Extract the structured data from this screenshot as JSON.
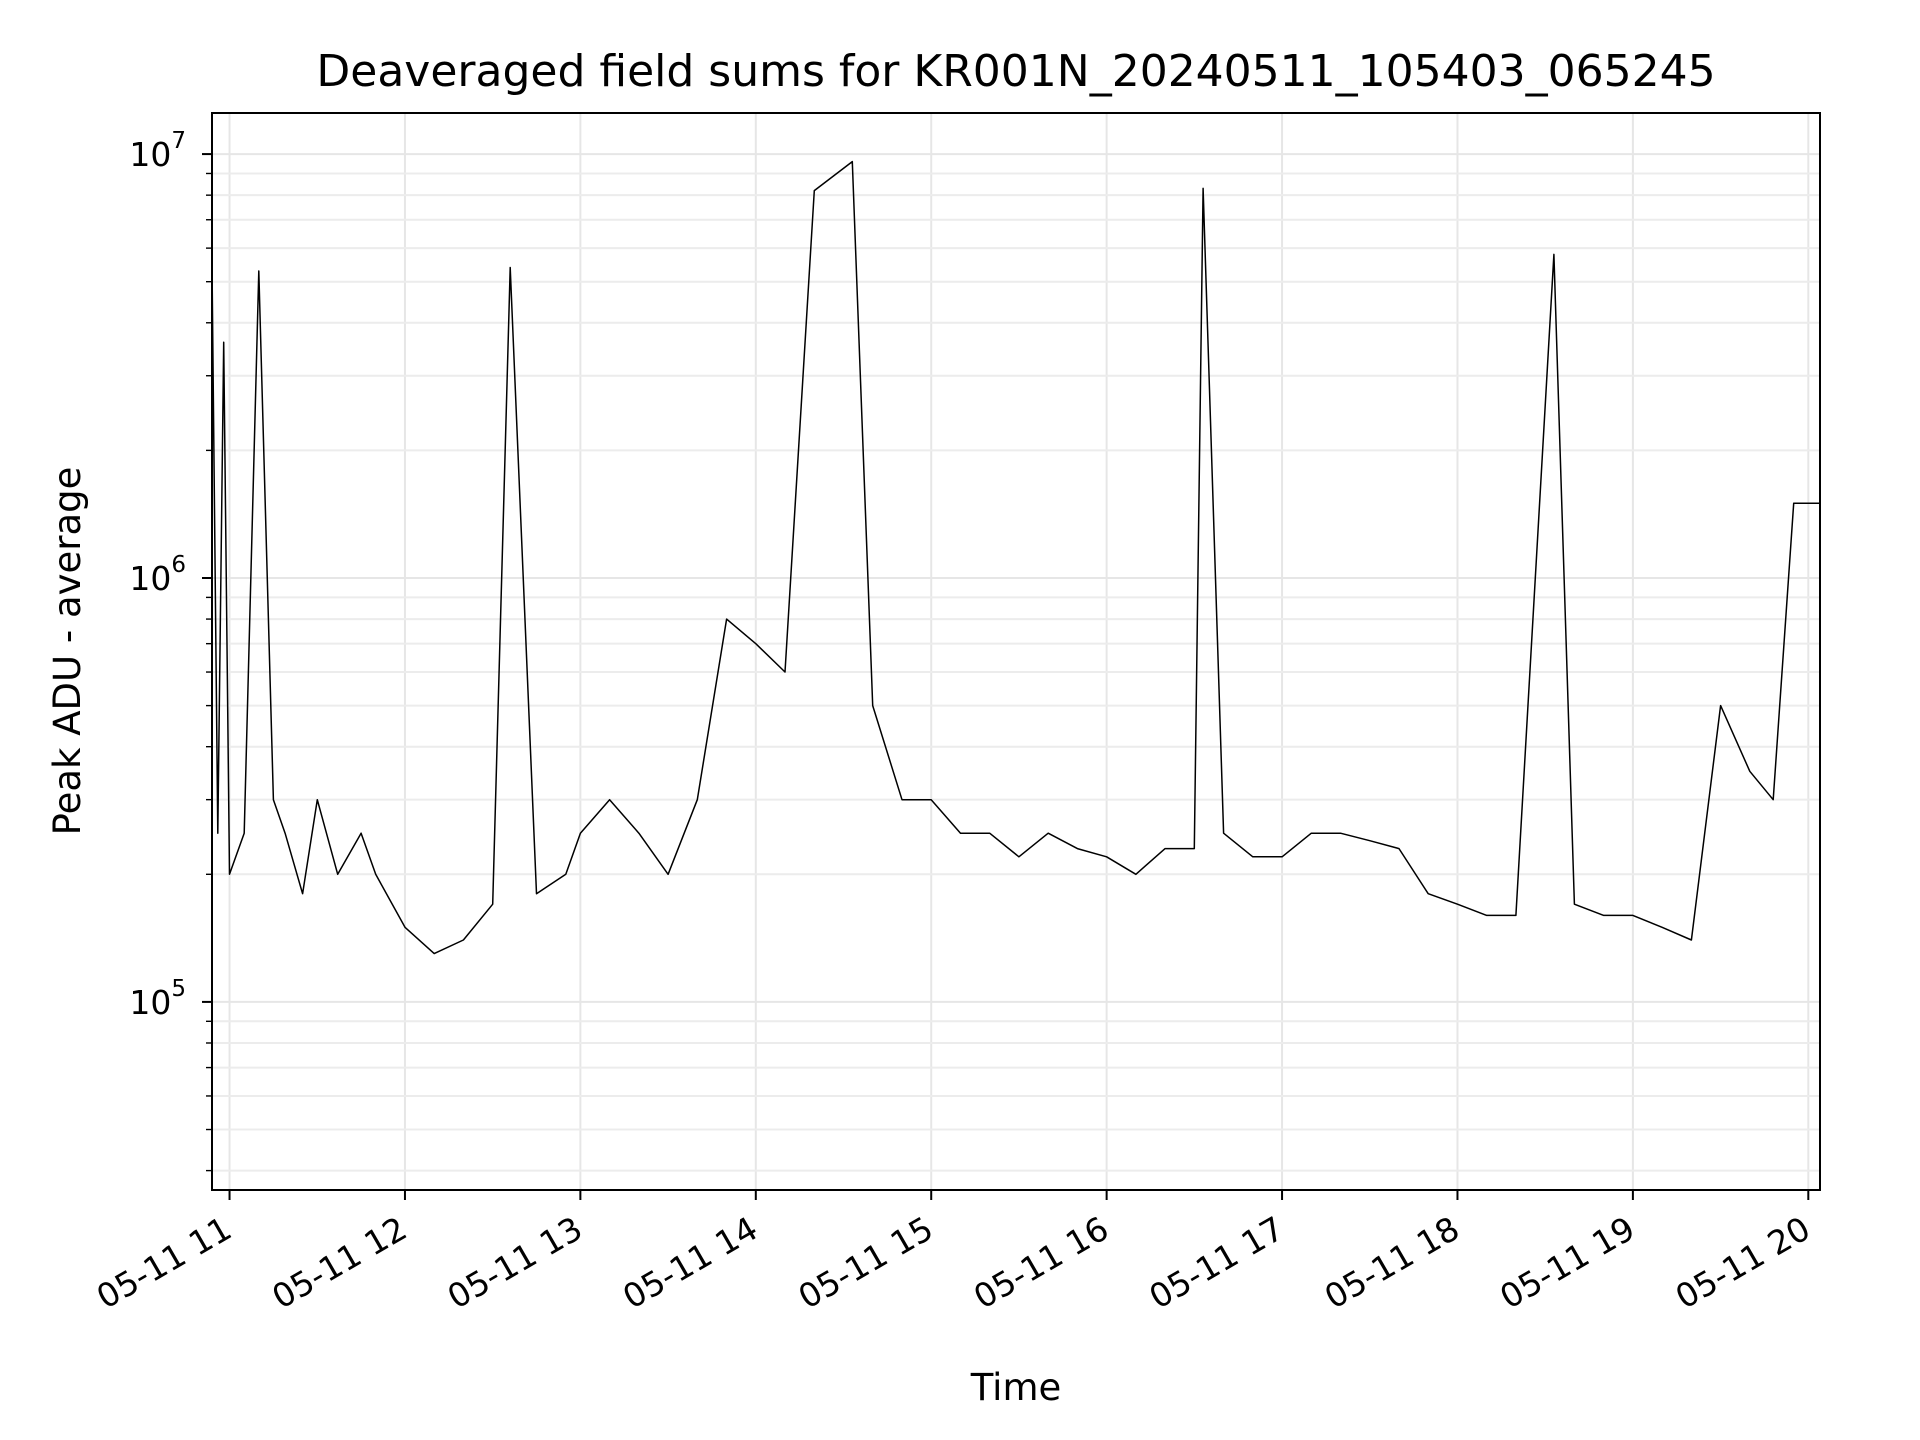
{
  "chart_data": {
    "type": "line",
    "title": "Deaveraged field sums for KR001N_20240511_105403_065245",
    "xlabel": "Time",
    "ylabel": "Peak ADU - average",
    "y_scale": "log",
    "ylim": [
      36000,
      12500000
    ],
    "xlim": [
      "2024-05-11T10:54",
      "2024-05-11T20:04"
    ],
    "grid": "major and minor",
    "x_tick_labels": [
      "05-11 11",
      "05-11 12",
      "05-11 13",
      "05-11 14",
      "05-11 15",
      "05-11 16",
      "05-11 17",
      "05-11 18",
      "05-11 19",
      "05-11 20"
    ],
    "y_tick_labels": [
      {
        "base": "10",
        "exp": "5",
        "value": 100000
      },
      {
        "base": "10",
        "exp": "6",
        "value": 1000000
      },
      {
        "base": "10",
        "exp": "7",
        "value": 10000000
      }
    ],
    "series": [
      {
        "color": "#000000",
        "x": [
          "2024-05-11T10:54",
          "2024-05-11T10:56",
          "2024-05-11T10:58",
          "2024-05-11T11:00",
          "2024-05-11T11:05",
          "2024-05-11T11:10",
          "2024-05-11T11:15",
          "2024-05-11T11:19",
          "2024-05-11T11:25",
          "2024-05-11T11:30",
          "2024-05-11T11:37",
          "2024-05-11T11:45",
          "2024-05-11T11:50",
          "2024-05-11T12:00",
          "2024-05-11T12:10",
          "2024-05-11T12:20",
          "2024-05-11T12:30",
          "2024-05-11T12:36",
          "2024-05-11T12:45",
          "2024-05-11T12:55",
          "2024-05-11T13:00",
          "2024-05-11T13:10",
          "2024-05-11T13:20",
          "2024-05-11T13:30",
          "2024-05-11T13:40",
          "2024-05-11T13:50",
          "2024-05-11T14:00",
          "2024-05-11T14:10",
          "2024-05-11T14:20",
          "2024-05-11T14:33",
          "2024-05-11T14:40",
          "2024-05-11T14:50",
          "2024-05-11T15:00",
          "2024-05-11T15:10",
          "2024-05-11T15:20",
          "2024-05-11T15:30",
          "2024-05-11T15:40",
          "2024-05-11T15:50",
          "2024-05-11T16:00",
          "2024-05-11T16:10",
          "2024-05-11T16:20",
          "2024-05-11T16:30",
          "2024-05-11T16:33",
          "2024-05-11T16:40",
          "2024-05-11T16:50",
          "2024-05-11T17:00",
          "2024-05-11T17:10",
          "2024-05-11T17:20",
          "2024-05-11T17:30",
          "2024-05-11T17:40",
          "2024-05-11T17:50",
          "2024-05-11T18:00",
          "2024-05-11T18:10",
          "2024-05-11T18:20",
          "2024-05-11T18:33",
          "2024-05-11T18:40",
          "2024-05-11T18:50",
          "2024-05-11T19:00",
          "2024-05-11T19:10",
          "2024-05-11T19:20",
          "2024-05-11T19:30",
          "2024-05-11T19:40",
          "2024-05-11T19:48",
          "2024-05-11T19:55",
          "2024-05-11T20:04"
        ],
        "y": [
          5500000,
          250000,
          3600000,
          200000,
          250000,
          5300000,
          300000,
          250000,
          180000,
          300000,
          200000,
          250000,
          200000,
          150000,
          130000,
          140000,
          170000,
          5400000,
          180000,
          200000,
          250000,
          300000,
          250000,
          200000,
          300000,
          800000,
          700000,
          600000,
          8200000,
          9600000,
          500000,
          300000,
          300000,
          250000,
          250000,
          220000,
          250000,
          230000,
          220000,
          200000,
          230000,
          230000,
          8300000,
          250000,
          220000,
          220000,
          250000,
          250000,
          240000,
          230000,
          180000,
          170000,
          160000,
          160000,
          5800000,
          170000,
          160000,
          160000,
          150000,
          140000,
          500000,
          350000,
          300000,
          1500000,
          1500000
        ]
      }
    ]
  }
}
